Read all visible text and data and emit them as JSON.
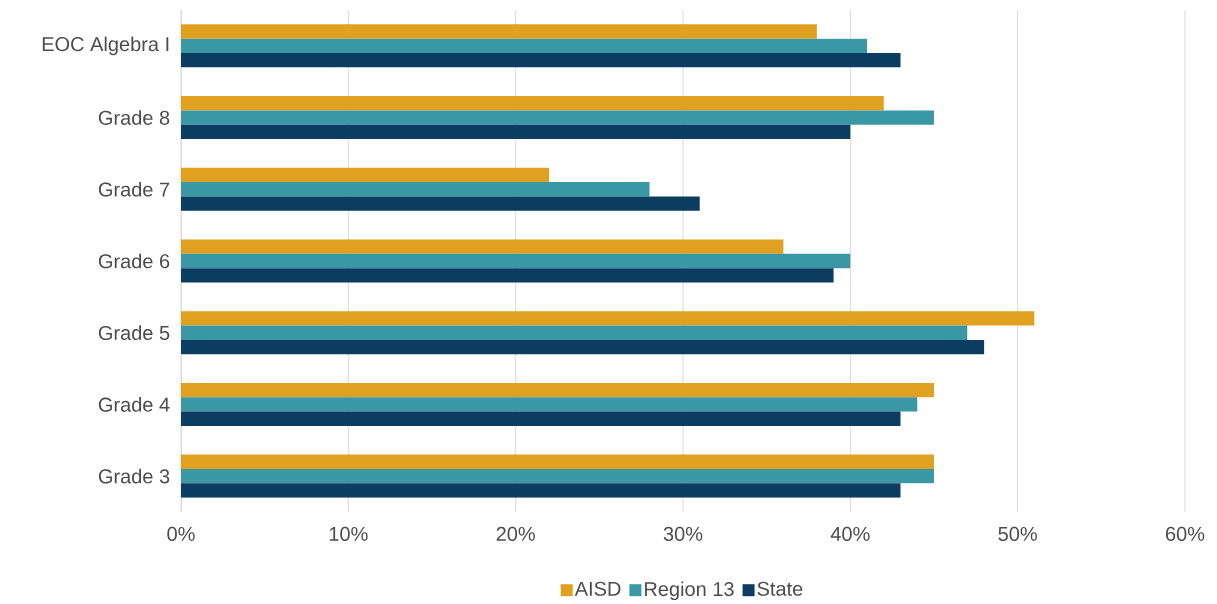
{
  "chart_data": {
    "type": "bar",
    "orientation": "horizontal",
    "categories": [
      "EOC Algebra I",
      "Grade 8",
      "Grade 7",
      "Grade 6",
      "Grade 5",
      "Grade 4",
      "Grade 3"
    ],
    "series": [
      {
        "name": "AISD",
        "color": "#e0a020",
        "values": [
          38,
          42,
          22,
          36,
          51,
          45,
          45
        ]
      },
      {
        "name": "Region 13",
        "color": "#3a98a4",
        "values": [
          41,
          45,
          28,
          40,
          47,
          44,
          45
        ]
      },
      {
        "name": "State",
        "color": "#0c3c60",
        "values": [
          43,
          40,
          31,
          39,
          48,
          43,
          43
        ]
      }
    ],
    "xlim": [
      0,
      60
    ],
    "xticks": [
      {
        "value": 0,
        "label": "0%"
      },
      {
        "value": 10,
        "label": "10%"
      },
      {
        "value": 20,
        "label": "20%"
      },
      {
        "value": 30,
        "label": "30%"
      },
      {
        "value": 40,
        "label": "40%"
      },
      {
        "value": 50,
        "label": "50%"
      },
      {
        "value": 60,
        "label": "60%"
      }
    ],
    "grid": "x",
    "legend": "bottom"
  }
}
